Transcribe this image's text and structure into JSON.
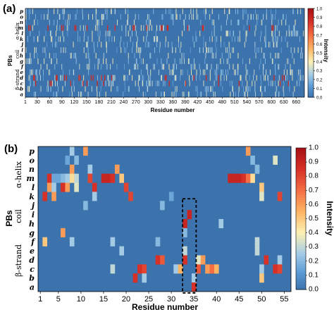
{
  "panel_a": {
    "label": "(a)",
    "xlabel": "Residue number",
    "ylabel": "PBs",
    "colorbar_label": "Intensity",
    "groups": [
      "α-helix",
      "coil",
      "β-strand"
    ]
  },
  "panel_b": {
    "label": "(b)",
    "xlabel": "Residue number",
    "ylabel": "PBs",
    "colorbar_label": "Intensity",
    "groups": [
      "α-helix",
      "coil",
      "β-strand"
    ]
  },
  "colors": {
    "colormap": [
      "#3c6ea9",
      "#5b9bd5",
      "#a3cbe6",
      "#fdf0b3",
      "#fdb462",
      "#f46d43",
      "#d73027",
      "#a50f15"
    ],
    "background": "#3d73ad",
    "highlight_box": "#000000"
  },
  "chart_data": [
    {
      "type": "heatmap",
      "title": "",
      "xlabel": "Residue number",
      "ylabel": "PBs",
      "rows": [
        "p",
        "o",
        "n",
        "m",
        "l",
        "k",
        "j",
        "i",
        "h",
        "g",
        "f",
        "e",
        "d",
        "c",
        "b",
        "a"
      ],
      "x_ticks": [
        1,
        30,
        60,
        90,
        120,
        150,
        180,
        210,
        240,
        270,
        300,
        330,
        360,
        390,
        420,
        450,
        480,
        510,
        540,
        570,
        600,
        630,
        660
      ],
      "xlim": [
        1,
        680
      ],
      "colorbar": {
        "label": "Intensity",
        "range": [
          0,
          1
        ],
        "ticks": [
          "0.0",
          "0.1",
          "0.2",
          "0.3",
          "0.4",
          "0.5",
          "0.6",
          "0.7",
          "0.8",
          "0.9",
          "1.0"
        ]
      },
      "cells_note": "dense per-residue PB intensities; strong values concentrated in rows m (helix) and c/d (strand)",
      "hot_spots": [
        {
          "row": "m",
          "residues": [
            8,
            12,
            55,
            88,
            92,
            120,
            123,
            150,
            200,
            218,
            262,
            265,
            295,
            330,
            333,
            345,
            347,
            395,
            431,
            433,
            545,
            600,
            603
          ]
        },
        {
          "row": "d",
          "residues": [
            20,
            22,
            75,
            77,
            95,
            100,
            130,
            133,
            160,
            165,
            185,
            193,
            210,
            340,
            343,
            410,
            440,
            470,
            605,
            625,
            630
          ]
        },
        {
          "row": "c",
          "residues": [
            25,
            60,
            63,
            110,
            140,
            150,
            175,
            190,
            350,
            390,
            470,
            520,
            620,
            640
          ]
        }
      ]
    },
    {
      "type": "heatmap",
      "title": "",
      "xlabel": "Residue number",
      "ylabel": "PBs",
      "rows": [
        "p",
        "o",
        "n",
        "m",
        "l",
        "k",
        "j",
        "i",
        "h",
        "g",
        "f",
        "e",
        "d",
        "c",
        "b",
        "a"
      ],
      "x_ticks": [
        1,
        5,
        10,
        15,
        20,
        25,
        30,
        35,
        40,
        45,
        50,
        55
      ],
      "xlim": [
        1,
        56
      ],
      "colorbar": {
        "label": "Intensity",
        "range": [
          0,
          1
        ],
        "ticks": [
          "0.0",
          "0.1",
          "0.2",
          "0.3",
          "0.4",
          "0.5",
          "0.6",
          "0.7",
          "0.8",
          "0.9",
          "1.0"
        ]
      },
      "highlight_box": {
        "x_range": [
          32.5,
          35.5
        ],
        "rows": [
          "j",
          "a"
        ]
      },
      "cells": [
        {
          "row": "p",
          "x": 8,
          "v": 0.25
        },
        {
          "row": "p",
          "x": 11,
          "v": 0.6
        },
        {
          "row": "p",
          "x": 47,
          "v": 0.6
        },
        {
          "row": "o",
          "x": 7,
          "v": 0.15
        },
        {
          "row": "o",
          "x": 9,
          "v": 0.2
        },
        {
          "row": "o",
          "x": 48,
          "v": 0.2
        },
        {
          "row": "o",
          "x": 53,
          "v": 0.35
        },
        {
          "row": "n",
          "x": 8,
          "v": 0.6
        },
        {
          "row": "n",
          "x": 12,
          "v": 0.25
        },
        {
          "row": "n",
          "x": 18,
          "v": 0.6
        },
        {
          "row": "n",
          "x": 49,
          "v": 0.2
        },
        {
          "row": "m",
          "x": 3,
          "v": 0.85
        },
        {
          "row": "m",
          "x": 4,
          "v": 0.15
        },
        {
          "row": "m",
          "x": 5,
          "v": 0.15
        },
        {
          "row": "m",
          "x": 6,
          "v": 0.2
        },
        {
          "row": "m",
          "x": 7,
          "v": 0.25
        },
        {
          "row": "m",
          "x": 8,
          "v": 0.45
        },
        {
          "row": "m",
          "x": 9,
          "v": 0.3
        },
        {
          "row": "m",
          "x": 12,
          "v": 0.8
        },
        {
          "row": "m",
          "x": 15,
          "v": 0.9
        },
        {
          "row": "m",
          "x": 16,
          "v": 0.9
        },
        {
          "row": "m",
          "x": 17,
          "v": 0.85
        },
        {
          "row": "m",
          "x": 19,
          "v": 0.5
        },
        {
          "row": "m",
          "x": 43,
          "v": 0.9
        },
        {
          "row": "m",
          "x": 44,
          "v": 0.9
        },
        {
          "row": "m",
          "x": 45,
          "v": 0.9
        },
        {
          "row": "m",
          "x": 46,
          "v": 0.85
        },
        {
          "row": "m",
          "x": 47,
          "v": 0.7
        },
        {
          "row": "m",
          "x": 48,
          "v": 0.45
        },
        {
          "row": "l",
          "x": 3,
          "v": 0.6
        },
        {
          "row": "l",
          "x": 4,
          "v": 0.25
        },
        {
          "row": "l",
          "x": 6,
          "v": 0.85
        },
        {
          "row": "l",
          "x": 7,
          "v": 0.6
        },
        {
          "row": "l",
          "x": 9,
          "v": 0.35
        },
        {
          "row": "l",
          "x": 13,
          "v": 0.85
        },
        {
          "row": "l",
          "x": 20,
          "v": 0.8
        },
        {
          "row": "l",
          "x": 50,
          "v": 0.5
        },
        {
          "row": "k",
          "x": 2,
          "v": 0.85
        },
        {
          "row": "k",
          "x": 4,
          "v": 0.6
        },
        {
          "row": "k",
          "x": 13,
          "v": 0.25
        },
        {
          "row": "k",
          "x": 21,
          "v": 0.8
        },
        {
          "row": "k",
          "x": 30,
          "v": 0.15
        },
        {
          "row": "k",
          "x": 50,
          "v": 0.35
        },
        {
          "row": "k",
          "x": 54,
          "v": 0.8
        },
        {
          "row": "j",
          "x": 11,
          "v": 0.2
        },
        {
          "row": "j",
          "x": 28,
          "v": 0.2
        },
        {
          "row": "i",
          "x": 34,
          "v": 0.9
        },
        {
          "row": "h",
          "x": 33,
          "v": 0.9
        },
        {
          "row": "h",
          "x": 41,
          "v": 0.25
        },
        {
          "row": "g",
          "x": 6,
          "v": 0.6
        },
        {
          "row": "g",
          "x": 33,
          "v": 0.2
        },
        {
          "row": "f",
          "x": 2,
          "v": 0.5
        },
        {
          "row": "f",
          "x": 8,
          "v": 0.25
        },
        {
          "row": "f",
          "x": 17,
          "v": 0.25
        },
        {
          "row": "f",
          "x": 27,
          "v": 0.2
        },
        {
          "row": "f",
          "x": 49,
          "v": 0.3
        },
        {
          "row": "e",
          "x": 19,
          "v": 0.25
        },
        {
          "row": "e",
          "x": 33,
          "v": 0.3
        },
        {
          "row": "e",
          "x": 49,
          "v": 0.3
        },
        {
          "row": "d",
          "x": 27,
          "v": 0.85
        },
        {
          "row": "d",
          "x": 28,
          "v": 0.75
        },
        {
          "row": "d",
          "x": 33,
          "v": 0.85
        },
        {
          "row": "d",
          "x": 36,
          "v": 0.35
        },
        {
          "row": "d",
          "x": 37,
          "v": 0.6
        },
        {
          "row": "d",
          "x": 51,
          "v": 0.85
        },
        {
          "row": "d",
          "x": 54,
          "v": 0.25
        },
        {
          "row": "c",
          "x": 17,
          "v": 0.3
        },
        {
          "row": "c",
          "x": 23,
          "v": 0.85
        },
        {
          "row": "c",
          "x": 24,
          "v": 0.8
        },
        {
          "row": "c",
          "x": 31,
          "v": 0.25
        },
        {
          "row": "c",
          "x": 32,
          "v": 0.55
        },
        {
          "row": "c",
          "x": 36,
          "v": 0.75
        },
        {
          "row": "c",
          "x": 38,
          "v": 0.6
        },
        {
          "row": "c",
          "x": 39,
          "v": 0.7
        },
        {
          "row": "c",
          "x": 40,
          "v": 0.55
        },
        {
          "row": "c",
          "x": 50,
          "v": 0.25
        },
        {
          "row": "c",
          "x": 53,
          "v": 0.85
        },
        {
          "row": "c",
          "x": 54,
          "v": 0.8
        },
        {
          "row": "b",
          "x": 22,
          "v": 0.85
        },
        {
          "row": "b",
          "x": 24,
          "v": 0.25
        },
        {
          "row": "b",
          "x": 35,
          "v": 0.25
        },
        {
          "row": "b",
          "x": 50,
          "v": 0.5
        },
        {
          "row": "a",
          "x": 35,
          "v": 0.85
        }
      ]
    }
  ]
}
